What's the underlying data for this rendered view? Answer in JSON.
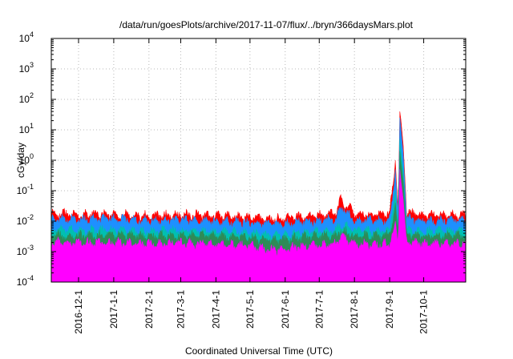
{
  "chart_data": {
    "type": "area",
    "title": "/data/run/goesPlots/archive/2017-11-07/flux/../bryn/366daysMars.plot",
    "xlabel": "Coordinated Universal Time (UTC)",
    "ylabel": "cGy/day",
    "y_scale": "log",
    "ylim": [
      0.0001,
      10000
    ],
    "xlim": [
      "2016-11-07",
      "2017-11-07"
    ],
    "grid": true,
    "legend": "none",
    "x_ticks": [
      "2016-12-1",
      "2017-1-1",
      "2017-2-1",
      "2017-3-1",
      "2017-4-1",
      "2017-5-1",
      "2017-6-1",
      "2017-7-1",
      "2017-8-1",
      "2017-9-1",
      "2017-10-1"
    ],
    "y_ticks": [
      {
        "value": 0.0001,
        "base": "10",
        "exp": "-4"
      },
      {
        "value": 0.001,
        "base": "10",
        "exp": "-3"
      },
      {
        "value": 0.01,
        "base": "10",
        "exp": "-2"
      },
      {
        "value": 0.1,
        "base": "10",
        "exp": "-1"
      },
      {
        "value": 1,
        "base": "10",
        "exp": "0"
      },
      {
        "value": 10,
        "base": "10",
        "exp": "1"
      },
      {
        "value": 100,
        "base": "10",
        "exp": "2"
      },
      {
        "value": 1000,
        "base": "10",
        "exp": "3"
      },
      {
        "value": 10000,
        "base": "10",
        "exp": "4"
      }
    ],
    "series": [
      {
        "color": "#ff0000",
        "x": [
          "2016-11-07",
          "2016-12-01",
          "2017-01-01",
          "2017-02-01",
          "2017-03-01",
          "2017-04-01",
          "2017-05-01",
          "2017-05-20",
          "2017-06-01",
          "2017-06-10",
          "2017-07-01",
          "2017-07-16",
          "2017-07-20",
          "2017-08-01",
          "2017-08-25",
          "2017-09-01",
          "2017-09-05",
          "2017-09-06",
          "2017-09-07",
          "2017-09-08",
          "2017-09-09",
          "2017-09-10",
          "2017-09-11",
          "2017-09-13",
          "2017-09-16",
          "2017-10-01",
          "2017-11-07"
        ],
        "y": [
          0.018,
          0.016,
          0.017,
          0.015,
          0.016,
          0.015,
          0.013,
          0.012,
          0.012,
          0.014,
          0.015,
          0.02,
          0.05,
          0.018,
          0.016,
          0.02,
          0.3,
          1.0,
          0.2,
          0.03,
          0.2,
          40,
          20,
          3,
          0.02,
          0.015,
          0.016
        ]
      },
      {
        "color": "#1e90ff",
        "x": [
          "2016-11-07",
          "2016-12-01",
          "2017-01-01",
          "2017-02-01",
          "2017-03-01",
          "2017-04-01",
          "2017-05-01",
          "2017-05-20",
          "2017-06-01",
          "2017-06-10",
          "2017-07-01",
          "2017-07-16",
          "2017-07-20",
          "2017-08-01",
          "2017-08-25",
          "2017-09-01",
          "2017-09-05",
          "2017-09-06",
          "2017-09-07",
          "2017-09-08",
          "2017-09-09",
          "2017-09-10",
          "2017-09-11",
          "2017-09-13",
          "2017-09-16",
          "2017-10-01",
          "2017-11-07"
        ],
        "y": [
          0.012,
          0.011,
          0.012,
          0.01,
          0.011,
          0.01,
          0.009,
          0.008,
          0.008,
          0.009,
          0.01,
          0.012,
          0.03,
          0.011,
          0.01,
          0.012,
          0.15,
          0.5,
          0.1,
          0.02,
          0.1,
          25,
          10,
          1.5,
          0.012,
          0.01,
          0.011
        ]
      },
      {
        "color": "#00c0b0",
        "x": [
          "2016-11-07",
          "2016-12-01",
          "2017-01-01",
          "2017-02-01",
          "2017-03-01",
          "2017-04-01",
          "2017-05-01",
          "2017-05-20",
          "2017-06-01",
          "2017-06-10",
          "2017-07-01",
          "2017-07-16",
          "2017-07-20",
          "2017-08-01",
          "2017-08-25",
          "2017-09-01",
          "2017-09-05",
          "2017-09-06",
          "2017-09-07",
          "2017-09-08",
          "2017-09-09",
          "2017-09-10",
          "2017-09-11",
          "2017-09-13",
          "2017-09-16",
          "2017-10-01",
          "2017-11-07"
        ],
        "y": [
          0.005,
          0.0048,
          0.005,
          0.0045,
          0.0048,
          0.0045,
          0.004,
          0.0035,
          0.0035,
          0.004,
          0.0045,
          0.005,
          0.008,
          0.005,
          0.0045,
          0.005,
          0.05,
          0.1,
          0.03,
          0.008,
          0.04,
          5,
          2,
          0.4,
          0.005,
          0.0045,
          0.005
        ]
      },
      {
        "color": "#2e8b57",
        "x": [
          "2016-11-07",
          "2016-12-01",
          "2017-01-01",
          "2017-02-01",
          "2017-03-01",
          "2017-04-01",
          "2017-05-01",
          "2017-05-20",
          "2017-06-01",
          "2017-06-10",
          "2017-07-01",
          "2017-07-16",
          "2017-07-20",
          "2017-08-01",
          "2017-08-25",
          "2017-09-01",
          "2017-09-05",
          "2017-09-06",
          "2017-09-07",
          "2017-09-08",
          "2017-09-09",
          "2017-09-10",
          "2017-09-11",
          "2017-09-13",
          "2017-09-16",
          "2017-10-01",
          "2017-11-07"
        ],
        "y": [
          0.0035,
          0.0033,
          0.0035,
          0.0032,
          0.0034,
          0.0032,
          0.0028,
          0.0024,
          0.0024,
          0.0028,
          0.0032,
          0.0035,
          0.005,
          0.0034,
          0.0032,
          0.0035,
          0.02,
          0.04,
          0.015,
          0.005,
          0.02,
          2,
          0.8,
          0.2,
          0.0035,
          0.0032,
          0.0034
        ]
      },
      {
        "color": "#ff00ff",
        "x": [
          "2016-11-07",
          "2016-12-01",
          "2017-01-01",
          "2017-02-01",
          "2017-03-01",
          "2017-04-01",
          "2017-05-01",
          "2017-05-20",
          "2017-06-01",
          "2017-06-10",
          "2017-07-01",
          "2017-07-16",
          "2017-07-20",
          "2017-08-01",
          "2017-08-25",
          "2017-09-01",
          "2017-09-05",
          "2017-09-06",
          "2017-09-07",
          "2017-09-08",
          "2017-09-09",
          "2017-09-10",
          "2017-09-11",
          "2017-09-13",
          "2017-09-16",
          "2017-10-01",
          "2017-11-07"
        ],
        "y": [
          0.002,
          0.0019,
          0.002,
          0.0018,
          0.0019,
          0.0018,
          0.0015,
          0.0011,
          0.0012,
          0.0014,
          0.0016,
          0.0018,
          0.003,
          0.0018,
          0.0017,
          0.0018,
          0.006,
          0.01,
          0.005,
          0.002,
          0.006,
          0.5,
          0.2,
          0.05,
          0.002,
          0.0018,
          0.0019
        ]
      }
    ]
  }
}
